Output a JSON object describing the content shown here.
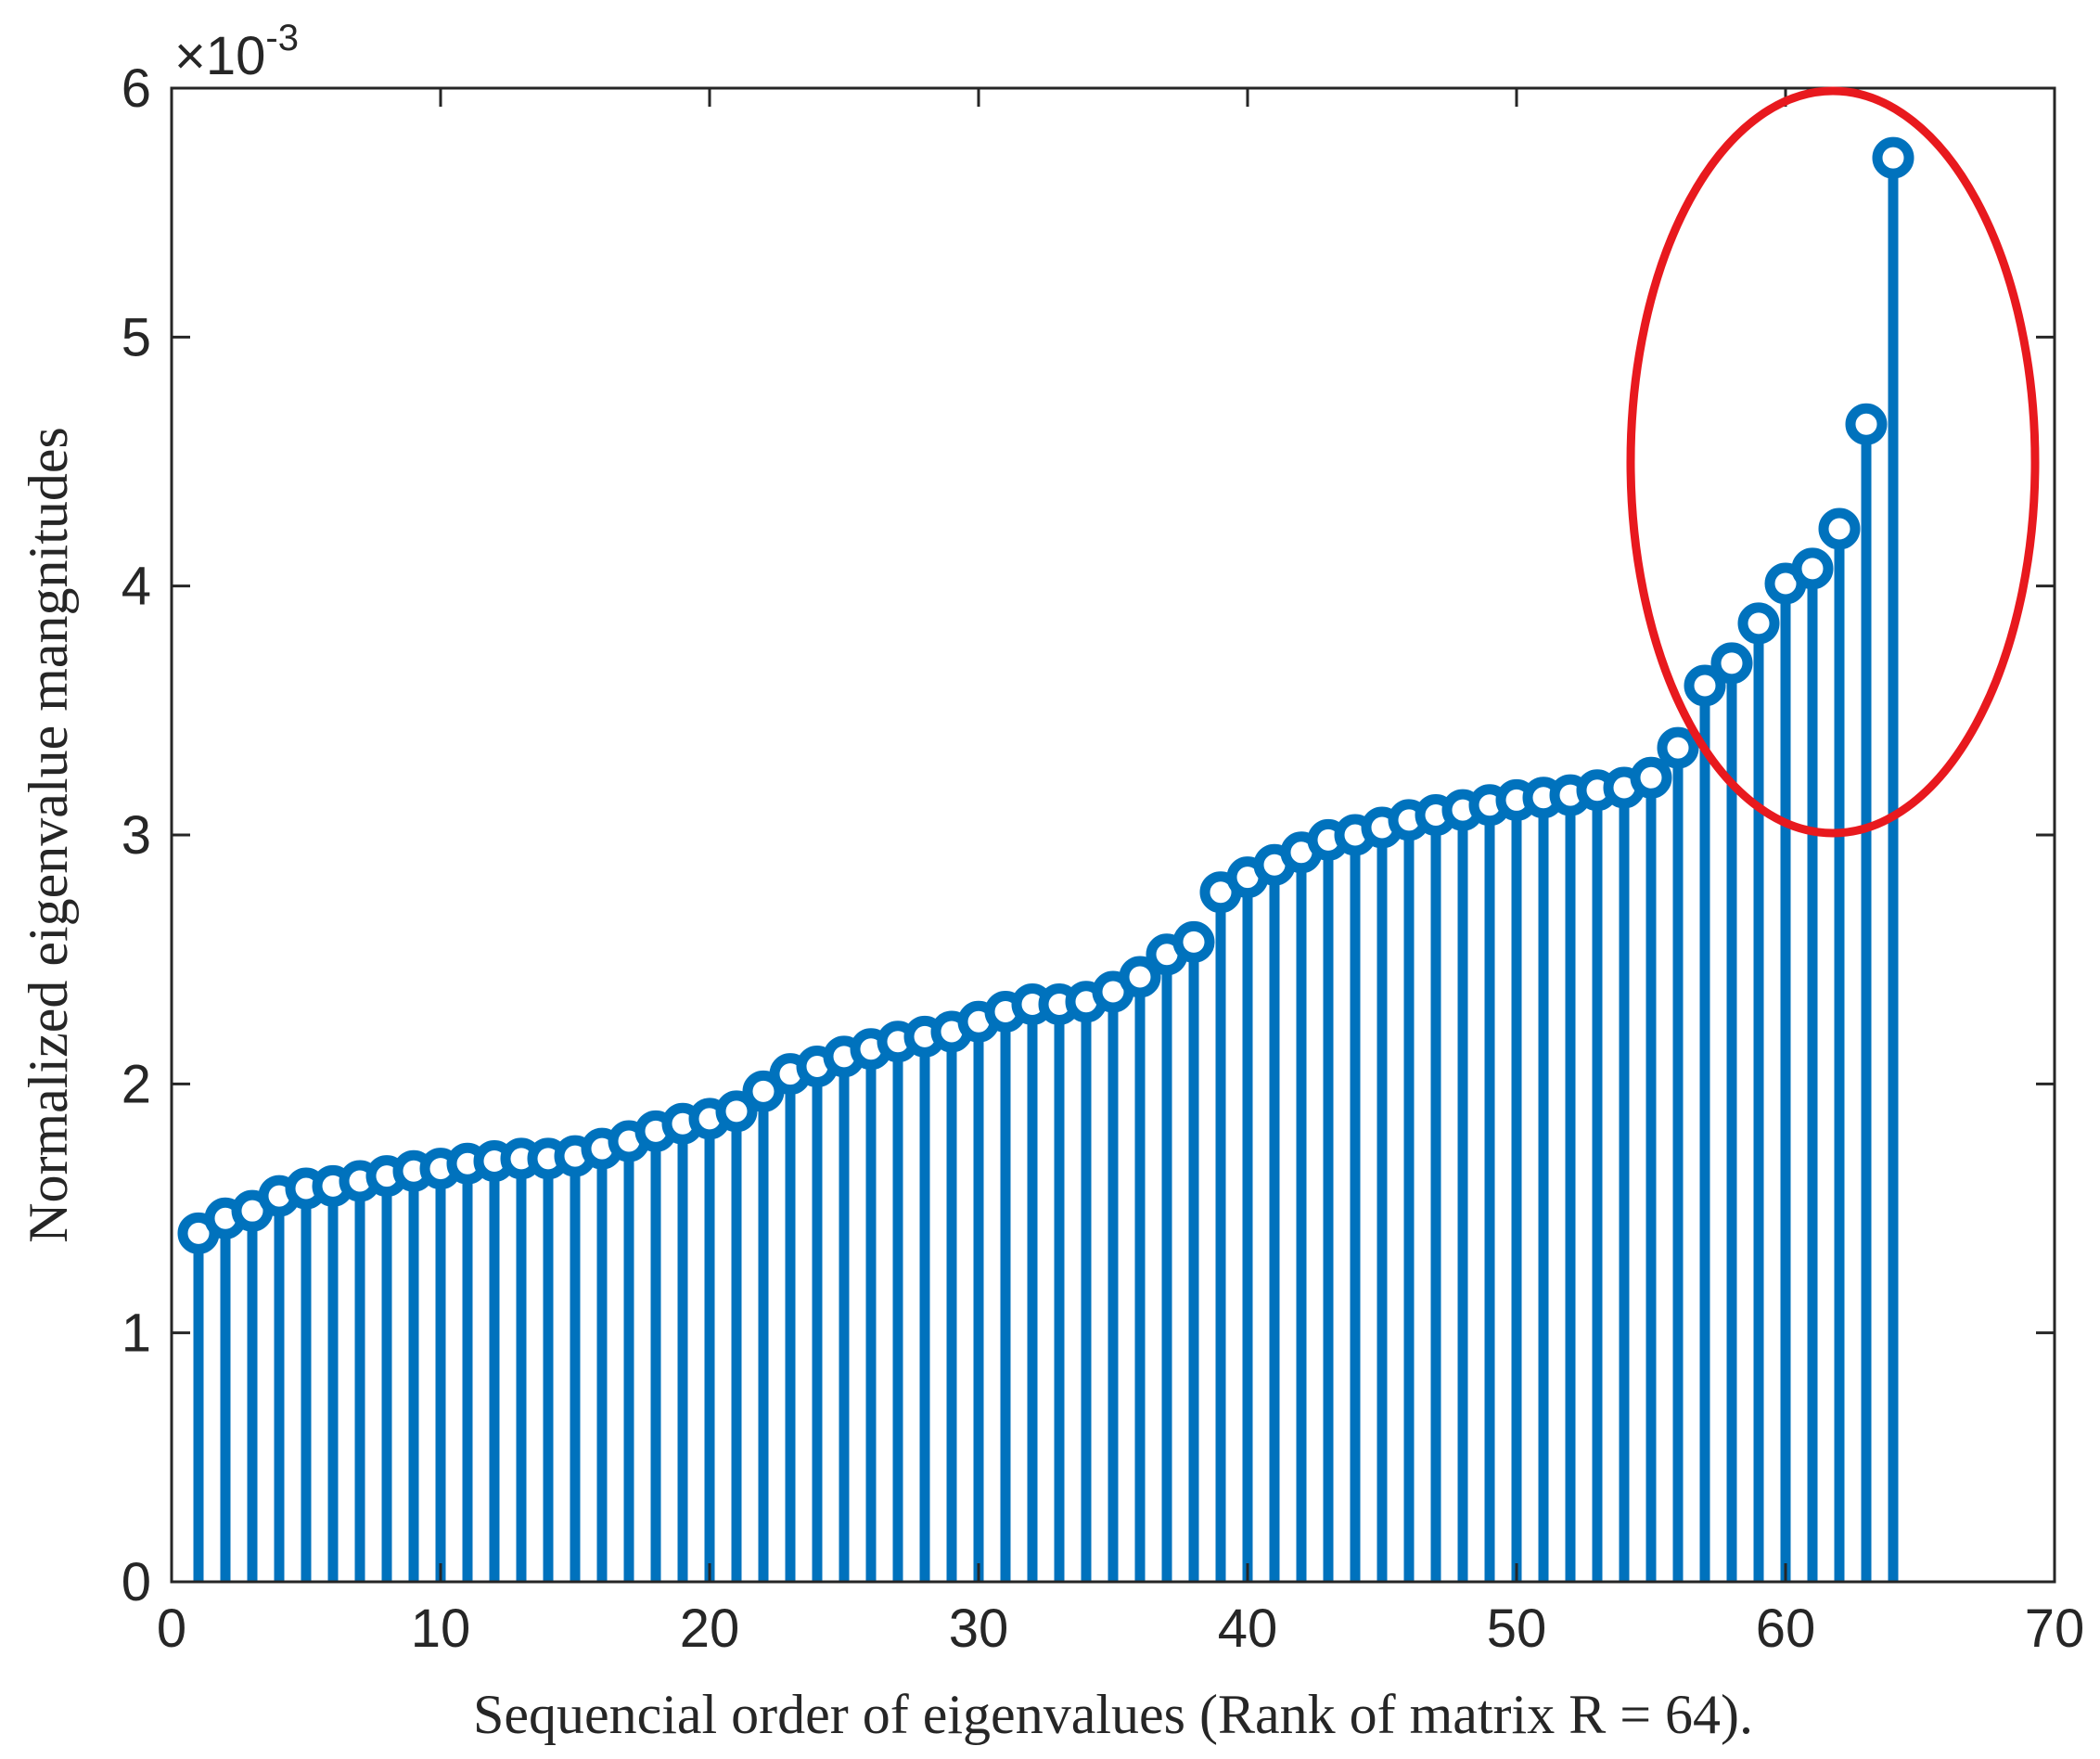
{
  "chart_data": {
    "type": "stem",
    "xlabel": "Sequencial order of eigenvalues (Rank of matrix R = 64).",
    "ylabel": "Normalized eigenvalue mangnitudes",
    "y_exponent": {
      "base": "×10",
      "power": "-3"
    },
    "xlim": [
      0,
      70
    ],
    "ylim": [
      0,
      6
    ],
    "xticks": [
      0,
      10,
      20,
      30,
      40,
      50,
      60,
      70
    ],
    "yticks": [
      0,
      1,
      2,
      3,
      4,
      5,
      6
    ],
    "grid": false,
    "series_color": "#0072BD",
    "highlight_color": "#E8191E",
    "x": [
      1,
      2,
      3,
      4,
      5,
      6,
      7,
      8,
      9,
      10,
      11,
      12,
      13,
      14,
      15,
      16,
      17,
      18,
      19,
      20,
      21,
      22,
      23,
      24,
      25,
      26,
      27,
      28,
      29,
      30,
      31,
      32,
      33,
      34,
      35,
      36,
      37,
      38,
      39,
      40,
      41,
      42,
      43,
      44,
      45,
      46,
      47,
      48,
      49,
      50,
      51,
      52,
      53,
      54,
      55,
      56,
      57,
      58,
      59,
      60,
      61,
      62,
      63,
      64
    ],
    "values": [
      1.4,
      1.46,
      1.49,
      1.55,
      1.58,
      1.59,
      1.61,
      1.63,
      1.65,
      1.66,
      1.68,
      1.69,
      1.7,
      1.7,
      1.71,
      1.74,
      1.77,
      1.81,
      1.84,
      1.86,
      1.89,
      1.97,
      2.04,
      2.07,
      2.11,
      2.14,
      2.17,
      2.19,
      2.21,
      2.25,
      2.29,
      2.32,
      2.32,
      2.33,
      2.37,
      2.43,
      2.52,
      2.57,
      2.77,
      2.83,
      2.88,
      2.93,
      2.98,
      3.0,
      3.03,
      3.06,
      3.08,
      3.1,
      3.12,
      3.14,
      3.15,
      3.16,
      3.18,
      3.19,
      3.23,
      3.35,
      3.6,
      3.69,
      3.85,
      4.01,
      4.07,
      4.23,
      4.65,
      5.72
    ]
  }
}
